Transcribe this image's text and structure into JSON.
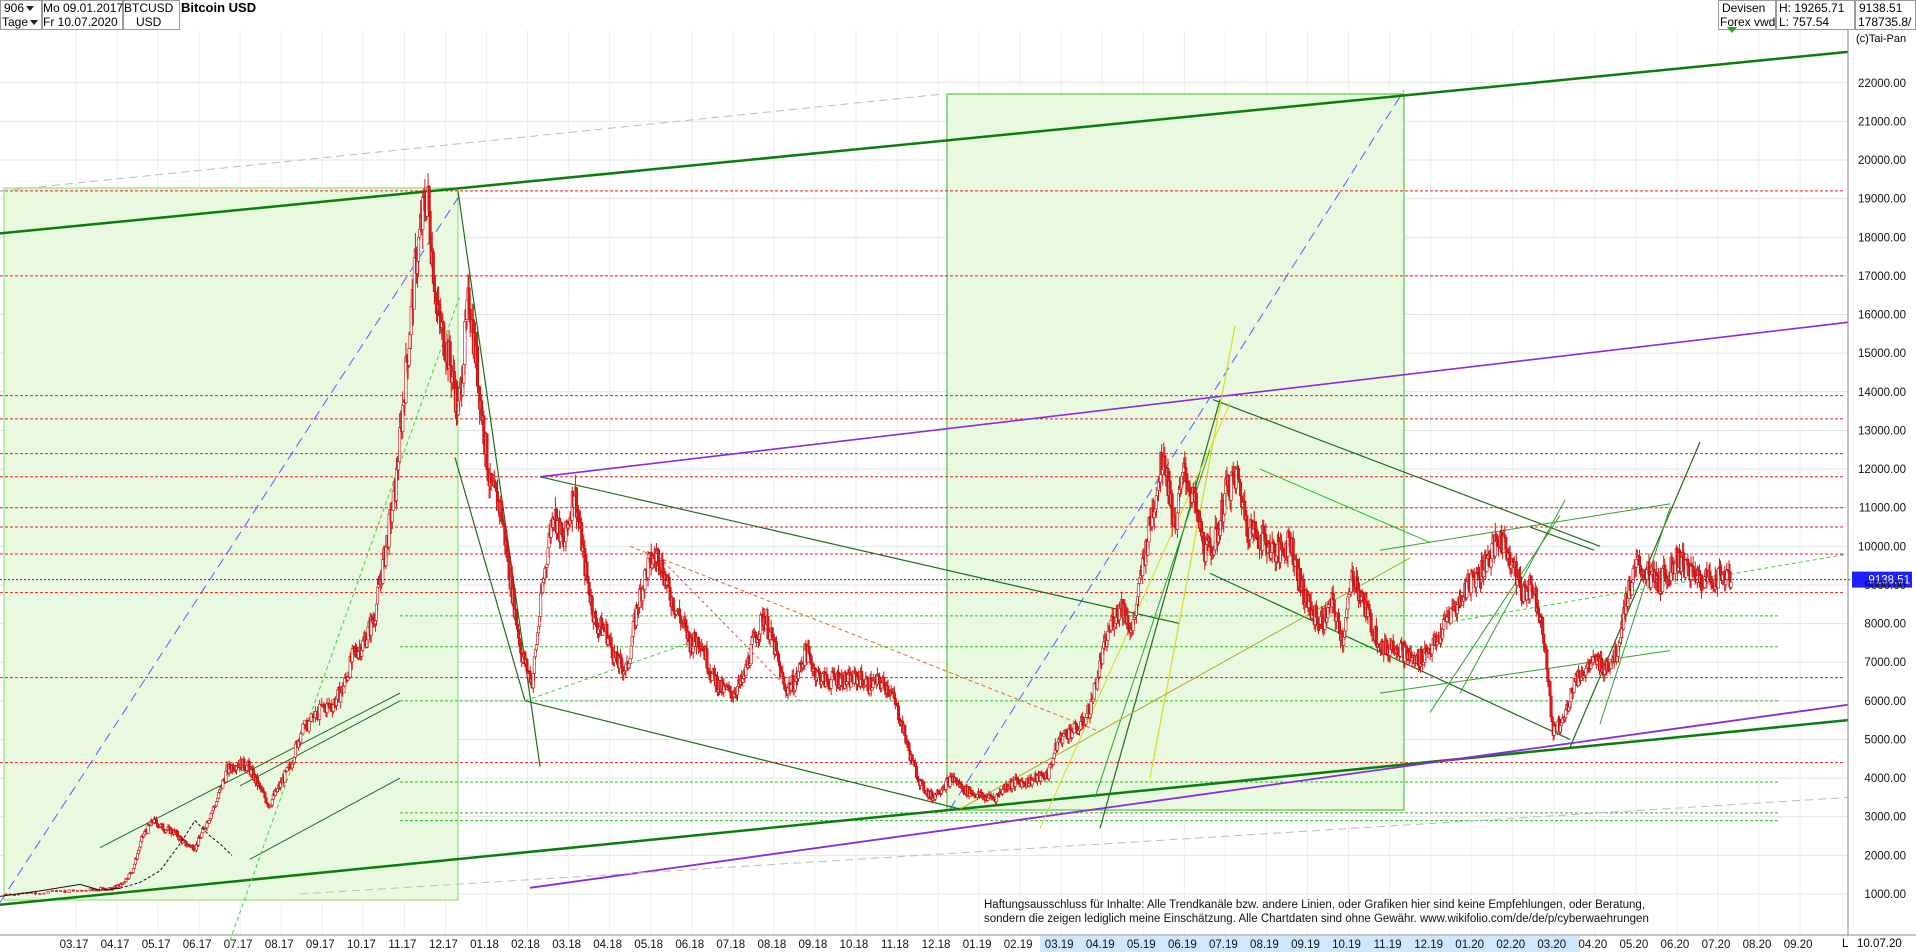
{
  "header": {
    "bars_count": "906",
    "date_from": "Mo 09.01.2017",
    "interval": "Tage",
    "date_to": "Fr 10.07.2020",
    "symbol": "BTCUSD",
    "currency": "USD",
    "title": "Bitcoin USD",
    "market_type": "Devisen",
    "source": "Forex vwd",
    "high_label": "H: 19265.71",
    "low_label": "L: 757.54",
    "last_price": "9138.51",
    "volume": "178735.8/",
    "copyright": "(c)Tai-Pan"
  },
  "price_tag": "9138.51",
  "disclaimer": {
    "line1": "Haftungsausschluss für Inhalte: Alle Trendkanäle bzw. andere Linien, oder Grafiken hier sind keine Empfehlungen, oder Beratung,",
    "line2": "sondern die zeigen lediglich meine  Einschätzung. Alle Chartdaten sind ohne Gewähr.  www.wikifolio.com/de/de/p/cyberwaehrungen"
  },
  "bottom_right": {
    "date": "10.07.20",
    "scale_button": "L"
  },
  "colors": {
    "candle": "#e01818",
    "trend_green": "#0a7a0a",
    "purple": "#8a2be2",
    "price_line": "#1a1aff",
    "box": "#e8f9e0"
  },
  "chart_data": {
    "type": "candlestick",
    "title": "Bitcoin USD",
    "ylim": [
      600,
      23000
    ],
    "y_ticks": [
      1000,
      2000,
      3000,
      4000,
      5000,
      6000,
      7000,
      8000,
      9000,
      10000,
      11000,
      12000,
      13000,
      14000,
      15000,
      16000,
      17000,
      18000,
      19000,
      20000,
      21000,
      22000
    ],
    "y_tick_labels": [
      "1000.00",
      "2000.00",
      "3000.00",
      "4000.00",
      "5000.00",
      "6000.00",
      "7000.00",
      "8000.00",
      "9000.00",
      "10000.00",
      "11000.00",
      "12000.00",
      "13000.00",
      "14000.00",
      "15000.00",
      "16000.00",
      "17000.00",
      "18000.00",
      "19000.00",
      "20000.00",
      "21000.00",
      "22000.00"
    ],
    "x_ticks": [
      "03.17",
      "04.17",
      "05.17",
      "06.17",
      "07.17",
      "08.17",
      "09.17",
      "10.17",
      "11.17",
      "12.17",
      "01.18",
      "02.18",
      "03.18",
      "04.18",
      "05.18",
      "06.18",
      "07.18",
      "08.18",
      "09.18",
      "10.18",
      "11.18",
      "12.18",
      "01.19",
      "02.19",
      "03.19",
      "04.19",
      "05.19",
      "06.19",
      "07.19",
      "08.19",
      "09.19",
      "10.19",
      "11.19",
      "12.19",
      "01.20",
      "02.20",
      "03.20",
      "04.20",
      "05.20",
      "06.20",
      "07.20",
      "08.20",
      "09.20"
    ],
    "last_value": 9138.51,
    "path": [
      [
        0,
        1000
      ],
      [
        2,
        1050
      ],
      [
        4,
        1100
      ],
      [
        5,
        1150
      ],
      [
        5.5,
        1250
      ],
      [
        6,
        1600
      ],
      [
        6.5,
        2500
      ],
      [
        7,
        2900
      ],
      [
        7.5,
        2700
      ],
      [
        8,
        2600
      ],
      [
        8.5,
        2300
      ],
      [
        9,
        2200
      ],
      [
        9.5,
        2800
      ],
      [
        10,
        3400
      ],
      [
        10.5,
        4200
      ],
      [
        11,
        4400
      ],
      [
        11.5,
        4300
      ],
      [
        12,
        3800
      ],
      [
        12.5,
        3300
      ],
      [
        13,
        3800
      ],
      [
        13.5,
        4300
      ],
      [
        14,
        5200
      ],
      [
        15,
        5800
      ],
      [
        15.5,
        5900
      ],
      [
        16,
        6300
      ],
      [
        16.5,
        7200
      ],
      [
        17,
        7500
      ],
      [
        17.5,
        8200
      ],
      [
        18,
        9800
      ],
      [
        18.5,
        11500
      ],
      [
        19,
        14500
      ],
      [
        19.5,
        17500
      ],
      [
        20,
        19200
      ],
      [
        20.5,
        16000
      ],
      [
        21,
        15000
      ],
      [
        21.5,
        13500
      ],
      [
        22,
        16500
      ],
      [
        22.5,
        14000
      ],
      [
        23,
        11500
      ],
      [
        23.5,
        11000
      ],
      [
        24,
        9000
      ],
      [
        24.5,
        7200
      ],
      [
        25,
        6500
      ],
      [
        25.5,
        9000
      ],
      [
        26,
        11000
      ],
      [
        26.5,
        10000
      ],
      [
        27,
        11500
      ],
      [
        27.5,
        9500
      ],
      [
        28,
        8000
      ],
      [
        28.5,
        7800
      ],
      [
        29,
        7000
      ],
      [
        29.5,
        6800
      ],
      [
        30,
        8500
      ],
      [
        30.5,
        9500
      ],
      [
        31,
        9800
      ],
      [
        31.5,
        8800
      ],
      [
        32,
        8200
      ],
      [
        32.5,
        7500
      ],
      [
        33,
        7600
      ],
      [
        33.5,
        6700
      ],
      [
        34,
        6300
      ],
      [
        34.5,
        6200
      ],
      [
        35,
        6500
      ],
      [
        35.5,
        7500
      ],
      [
        36,
        8200
      ],
      [
        36.5,
        7400
      ],
      [
        37,
        6300
      ],
      [
        37.5,
        6500
      ],
      [
        38,
        7300
      ],
      [
        38.5,
        6700
      ],
      [
        39,
        6500
      ],
      [
        39.5,
        6600
      ],
      [
        40,
        6500
      ],
      [
        40.5,
        6600
      ],
      [
        41,
        6400
      ],
      [
        41.5,
        6500
      ],
      [
        42,
        6300
      ],
      [
        42.5,
        5500
      ],
      [
        43,
        4500
      ],
      [
        43.5,
        3800
      ],
      [
        44,
        3500
      ],
      [
        44.5,
        3800
      ],
      [
        45,
        4000
      ],
      [
        45.5,
        3700
      ],
      [
        46,
        3600
      ],
      [
        46.5,
        3500
      ],
      [
        47,
        3500
      ],
      [
        47.5,
        3800
      ],
      [
        48,
        3900
      ],
      [
        48.5,
        3900
      ],
      [
        49,
        4000
      ],
      [
        49.5,
        4100
      ],
      [
        50,
        5000
      ],
      [
        50.5,
        5200
      ],
      [
        51,
        5300
      ],
      [
        51.5,
        5800
      ],
      [
        52,
        7000
      ],
      [
        52.5,
        8000
      ],
      [
        53,
        8500
      ],
      [
        53.5,
        7800
      ],
      [
        54,
        9500
      ],
      [
        54.5,
        11000
      ],
      [
        55,
        12500
      ],
      [
        55.5,
        10500
      ],
      [
        56,
        12000
      ],
      [
        56.5,
        11000
      ],
      [
        57,
        9800
      ],
      [
        57.5,
        10200
      ],
      [
        58,
        11500
      ],
      [
        58.5,
        11800
      ],
      [
        59,
        10500
      ],
      [
        59.5,
        10300
      ],
      [
        60,
        10000
      ],
      [
        60.5,
        9800
      ],
      [
        61,
        10200
      ],
      [
        61.5,
        9000
      ],
      [
        62,
        8300
      ],
      [
        62.5,
        8000
      ],
      [
        63,
        8500
      ],
      [
        63.5,
        7600
      ],
      [
        64,
        9300
      ],
      [
        64.5,
        8500
      ],
      [
        65,
        7800
      ],
      [
        65.5,
        7300
      ],
      [
        66,
        7500
      ],
      [
        66.5,
        7200
      ],
      [
        67,
        7000
      ],
      [
        67.5,
        7300
      ],
      [
        68,
        7500
      ],
      [
        68.5,
        8200
      ],
      [
        69,
        8500
      ],
      [
        69.5,
        9100
      ],
      [
        70,
        9300
      ],
      [
        70.5,
        9800
      ],
      [
        71,
        10200
      ],
      [
        71.5,
        9700
      ],
      [
        72,
        8800
      ],
      [
        72.5,
        9000
      ],
      [
        73,
        8000
      ],
      [
        73.5,
        5200
      ],
      [
        74,
        5500
      ],
      [
        74.5,
        6500
      ],
      [
        75,
        6800
      ],
      [
        75.5,
        7000
      ],
      [
        76,
        6900
      ],
      [
        76.5,
        7200
      ],
      [
        77,
        8700
      ],
      [
        77.5,
        9500
      ],
      [
        78,
        9300
      ],
      [
        78.5,
        9000
      ],
      [
        79,
        9400
      ],
      [
        79.5,
        9700
      ],
      [
        80,
        9300
      ],
      [
        80.5,
        9200
      ],
      [
        81,
        9100
      ],
      [
        81.5,
        9300
      ],
      [
        82,
        9138
      ]
    ]
  }
}
